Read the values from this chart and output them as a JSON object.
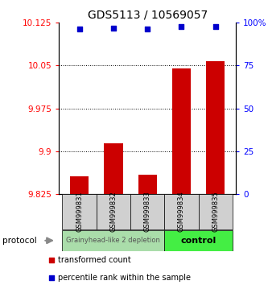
{
  "title": "GDS5113 / 10569057",
  "samples": [
    "GSM999831",
    "GSM999832",
    "GSM999833",
    "GSM999834",
    "GSM999835"
  ],
  "bar_values": [
    9.855,
    9.914,
    9.858,
    10.045,
    10.058
  ],
  "percentile_values": [
    96.5,
    96.8,
    96.3,
    97.8,
    97.6
  ],
  "ylim_left": [
    9.825,
    10.125
  ],
  "yticks_left": [
    9.825,
    9.9,
    9.975,
    10.05,
    10.125
  ],
  "ytick_labels_left": [
    "9.825",
    "9.9",
    "9.975",
    "10.05",
    "10.125"
  ],
  "ylim_right": [
    0,
    100
  ],
  "yticks_right": [
    0,
    25,
    50,
    75,
    100
  ],
  "ytick_labels_right": [
    "0",
    "25",
    "50",
    "75",
    "100%"
  ],
  "bar_color": "#cc0000",
  "dot_color": "#0000cc",
  "bar_width": 0.55,
  "group1_label": "Grainyhead-like 2 depletion",
  "group1_color": "#aaddaa",
  "group2_label": "control",
  "group2_color": "#44ee44",
  "protocol_label": "protocol",
  "legend_bar_label": "transformed count",
  "legend_dot_label": "percentile rank within the sample",
  "title_fontsize": 10,
  "tick_fontsize": 7.5,
  "sample_fontsize": 6,
  "group_fontsize": 7
}
